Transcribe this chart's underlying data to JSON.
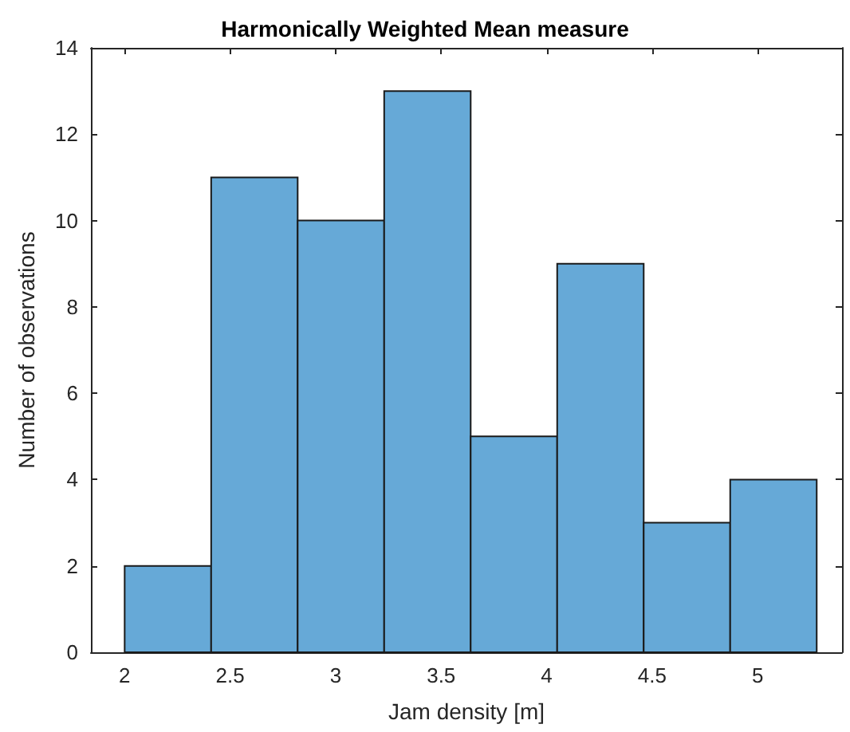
{
  "chart_data": {
    "type": "histogram",
    "title": "Harmonically Weighted Mean measure",
    "xlabel": "Jam density [m]",
    "ylabel": "Number of observations",
    "bins": [
      2,
      2.41,
      2.82,
      3.23,
      3.64,
      4.05,
      4.46,
      4.87,
      5.28
    ],
    "values": [
      2,
      11,
      10,
      13,
      5,
      9,
      3,
      4
    ],
    "color": "#66a9d7",
    "xlim": [
      1.84,
      5.4
    ],
    "xticks": [
      2,
      2.5,
      3,
      3.5,
      4,
      4.5,
      5
    ],
    "ylim": [
      0,
      14
    ],
    "yticks": [
      0,
      2,
      4,
      6,
      8,
      10,
      12,
      14
    ],
    "grid": false
  }
}
